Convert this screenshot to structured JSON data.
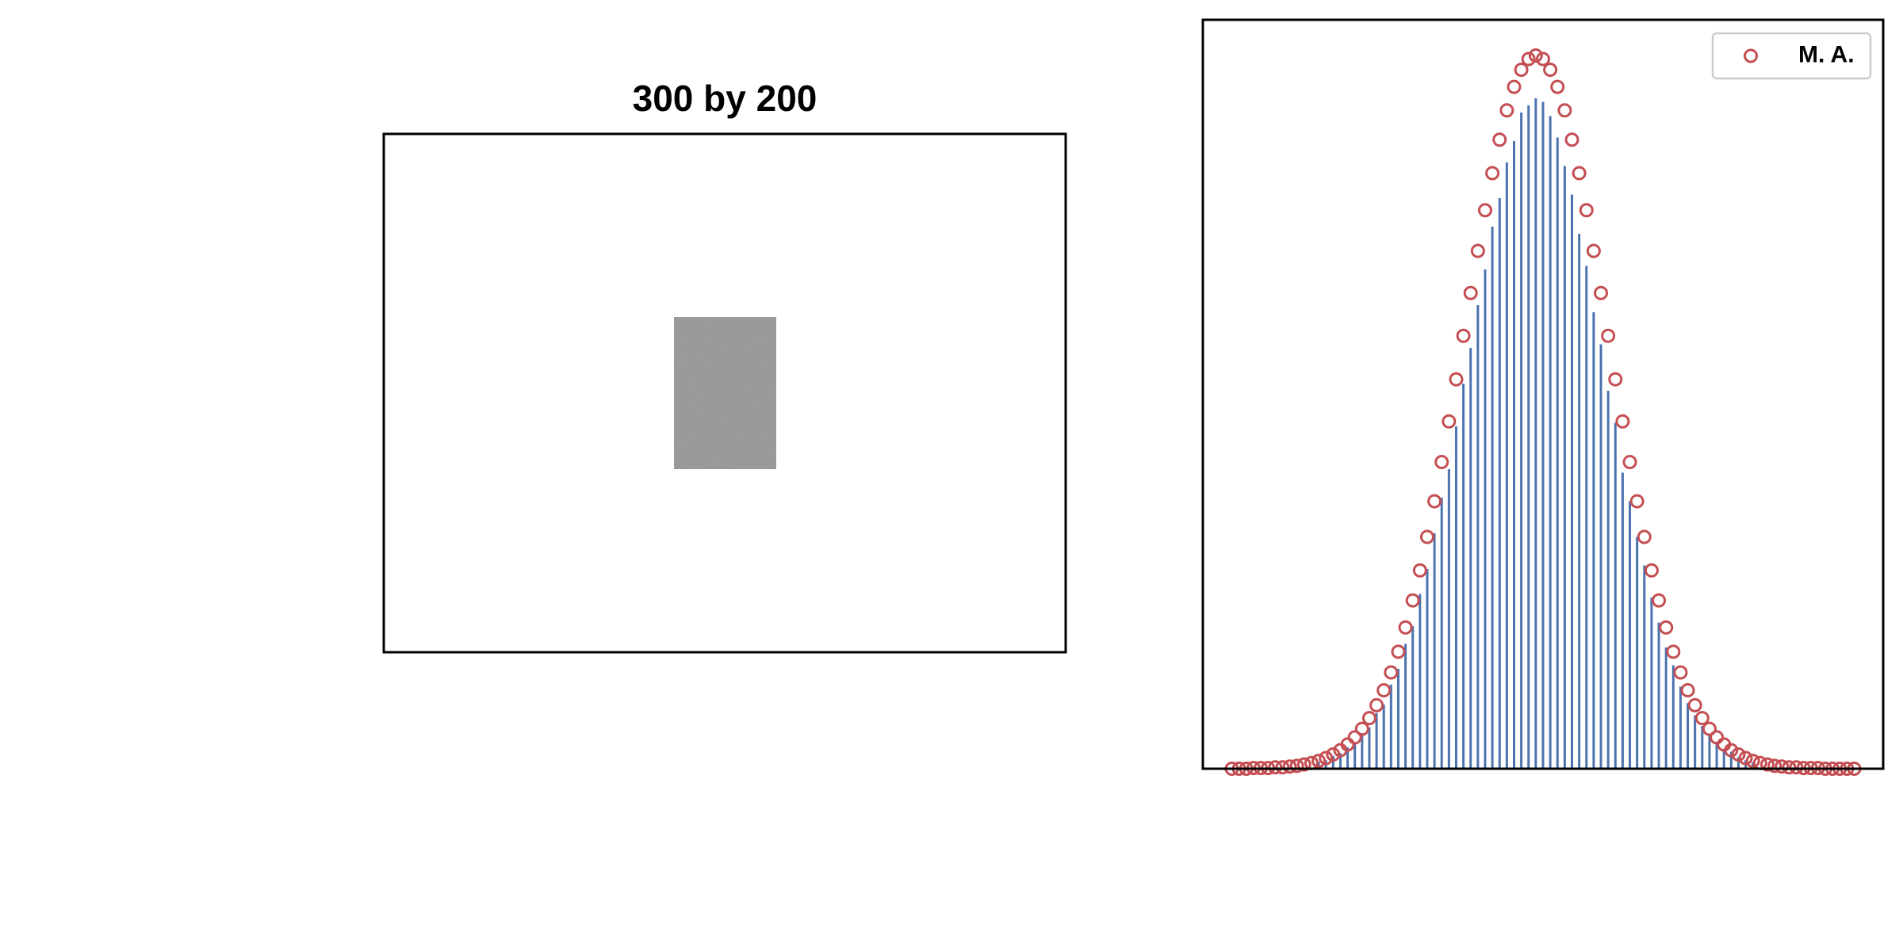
{
  "image_panel": {
    "title": "300 by 200"
  },
  "chart_data": {
    "type": "bar",
    "x": [
      -3.0,
      -2.9,
      -2.8,
      -2.7,
      -2.6,
      -2.5,
      -2.4,
      -2.3,
      -2.2,
      -2.1,
      -2.0,
      -1.9,
      -1.8,
      -1.7,
      -1.6,
      -1.5,
      -1.4,
      -1.3,
      -1.2,
      -1.1,
      -1.0,
      -0.9,
      -0.8,
      -0.7,
      -0.6,
      -0.5,
      -0.4,
      -0.3,
      -0.2,
      -0.1,
      0.0,
      0.1,
      0.2,
      0.3,
      0.4,
      0.5,
      0.6,
      0.7,
      0.8,
      0.9,
      1.0,
      1.1,
      1.2,
      1.3,
      1.4,
      1.5,
      1.6,
      1.7,
      1.8,
      1.9,
      2.0,
      2.1,
      2.2,
      2.3,
      2.4,
      2.5,
      2.6,
      2.7,
      2.8,
      2.9,
      3.0
    ],
    "values": [
      0.01,
      0.012,
      0.018,
      0.022,
      0.03,
      0.036,
      0.05,
      0.058,
      0.078,
      0.09,
      0.118,
      0.14,
      0.175,
      0.2,
      0.245,
      0.28,
      0.33,
      0.38,
      0.42,
      0.48,
      0.54,
      0.59,
      0.65,
      0.7,
      0.76,
      0.8,
      0.85,
      0.88,
      0.92,
      0.93,
      0.94,
      0.935,
      0.915,
      0.885,
      0.845,
      0.805,
      0.75,
      0.705,
      0.64,
      0.595,
      0.53,
      0.485,
      0.415,
      0.375,
      0.325,
      0.285,
      0.24,
      0.205,
      0.17,
      0.145,
      0.115,
      0.092,
      0.075,
      0.06,
      0.048,
      0.038,
      0.028,
      0.024,
      0.016,
      0.012,
      0.009
    ],
    "color": "#4c72b0",
    "series": [
      {
        "type": "scatter",
        "name": "M. A.",
        "color": "#c44e52",
        "x": [
          -4.2,
          -4.1,
          -4.0,
          -3.9,
          -3.8,
          -3.7,
          -3.6,
          -3.5,
          -3.4,
          -3.3,
          -3.2,
          -3.1,
          -3.0,
          -2.9,
          -2.8,
          -2.7,
          -2.6,
          -2.5,
          -2.4,
          -2.3,
          -2.2,
          -2.1,
          -2.0,
          -1.9,
          -1.8,
          -1.7,
          -1.6,
          -1.5,
          -1.4,
          -1.3,
          -1.2,
          -1.1,
          -1.0,
          -0.9,
          -0.8,
          -0.7,
          -0.6,
          -0.5,
          -0.4,
          -0.3,
          -0.2,
          -0.1,
          0.0,
          0.1,
          0.2,
          0.3,
          0.4,
          0.5,
          0.6,
          0.7,
          0.8,
          0.9,
          1.0,
          1.1,
          1.2,
          1.3,
          1.4,
          1.5,
          1.6,
          1.7,
          1.8,
          1.9,
          2.0,
          2.1,
          2.2,
          2.3,
          2.4,
          2.5,
          2.6,
          2.7,
          2.8,
          2.9,
          3.0,
          3.1,
          3.2,
          3.3,
          3.4,
          3.5,
          3.6,
          3.7,
          3.8,
          3.9,
          4.0,
          4.1,
          4.2,
          4.3,
          4.4
        ],
        "values": [
          0.0,
          0.0,
          0.0,
          0.001,
          0.001,
          0.001,
          0.002,
          0.002,
          0.003,
          0.004,
          0.006,
          0.008,
          0.011,
          0.015,
          0.02,
          0.026,
          0.034,
          0.044,
          0.056,
          0.071,
          0.089,
          0.11,
          0.135,
          0.164,
          0.198,
          0.236,
          0.278,
          0.325,
          0.375,
          0.43,
          0.487,
          0.546,
          0.607,
          0.667,
          0.726,
          0.783,
          0.835,
          0.882,
          0.923,
          0.956,
          0.98,
          0.995,
          1.0,
          0.995,
          0.98,
          0.956,
          0.923,
          0.882,
          0.835,
          0.783,
          0.726,
          0.667,
          0.607,
          0.546,
          0.487,
          0.43,
          0.375,
          0.325,
          0.278,
          0.236,
          0.198,
          0.164,
          0.135,
          0.11,
          0.089,
          0.071,
          0.056,
          0.044,
          0.034,
          0.026,
          0.02,
          0.015,
          0.011,
          0.008,
          0.006,
          0.004,
          0.003,
          0.002,
          0.002,
          0.001,
          0.001,
          0.001,
          0.0,
          0.0,
          0.0,
          0.0,
          0.0
        ]
      }
    ],
    "xlim": [
      -4.6,
      4.8
    ],
    "ylim": [
      0,
      1.05
    ],
    "legend": "upper right"
  }
}
